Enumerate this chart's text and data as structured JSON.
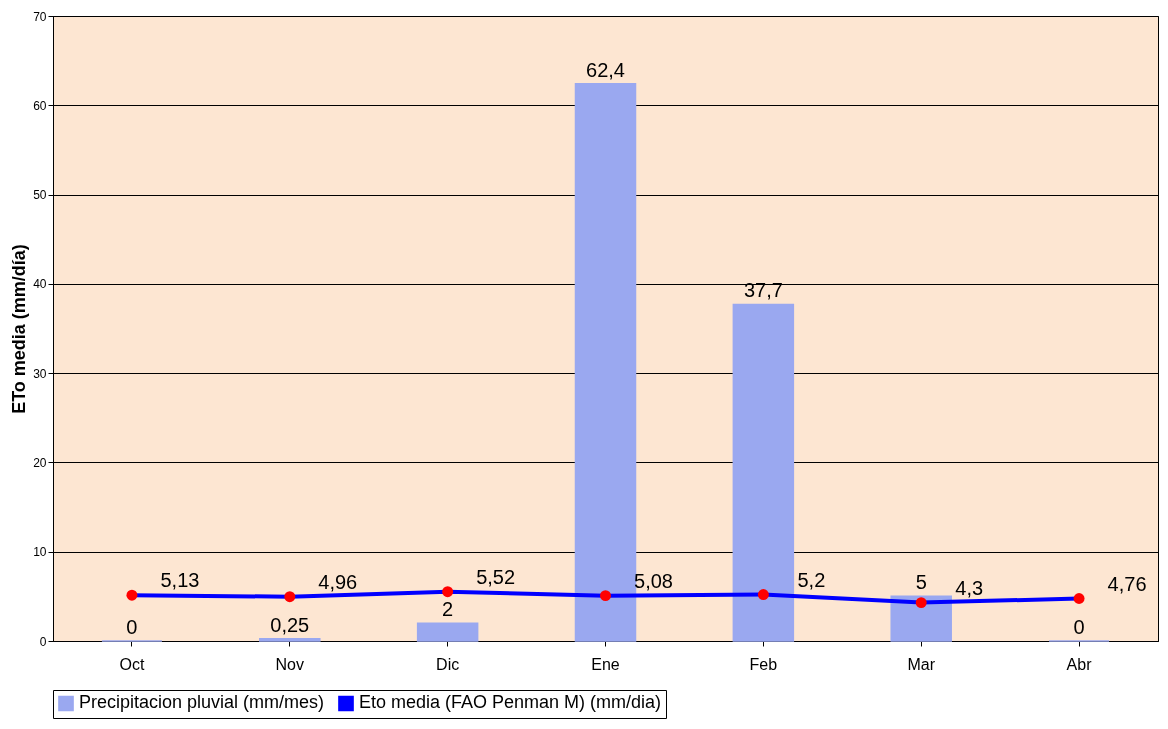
{
  "chart_data": {
    "type": "bar",
    "ylabel": "ETo media (mm/día)",
    "categories": [
      "Oct",
      "Nov",
      "Dic",
      "Ene",
      "Feb",
      "Mar",
      "Abr"
    ],
    "series": [
      {
        "name": "Precipitacion pluvial (mm/mes)",
        "color": "#9aa8f0",
        "values": [
          0,
          0.25,
          2,
          62.4,
          37.7,
          5,
          0
        ],
        "value_labels": [
          "0",
          "0,25",
          "2",
          "62,4",
          "37,7",
          "5",
          "0"
        ]
      },
      {
        "name": "Eto media (FAO Penman M) (mm/dia)",
        "type": "line",
        "color": "#0000ff",
        "colors": [
          "#ff0000",
          "#ff0000",
          "#ff0000",
          "#ff0000",
          "#ff0000",
          "#ff0000",
          "#ff0000"
        ],
        "values": [
          5.13,
          4.96,
          5.52,
          5.08,
          5.2,
          4.3,
          4.76
        ],
        "value_labels": [
          "5,13",
          "4,96",
          "5,52",
          "5,08",
          "5,2",
          "4,3",
          "4,76"
        ]
      }
    ],
    "ylim": [
      0,
      70
    ],
    "yticks": [
      0,
      10,
      20,
      30,
      40,
      50,
      60,
      70
    ],
    "grid": "y",
    "legend": "bottom",
    "marker": "circle",
    "line_style": "solid"
  }
}
